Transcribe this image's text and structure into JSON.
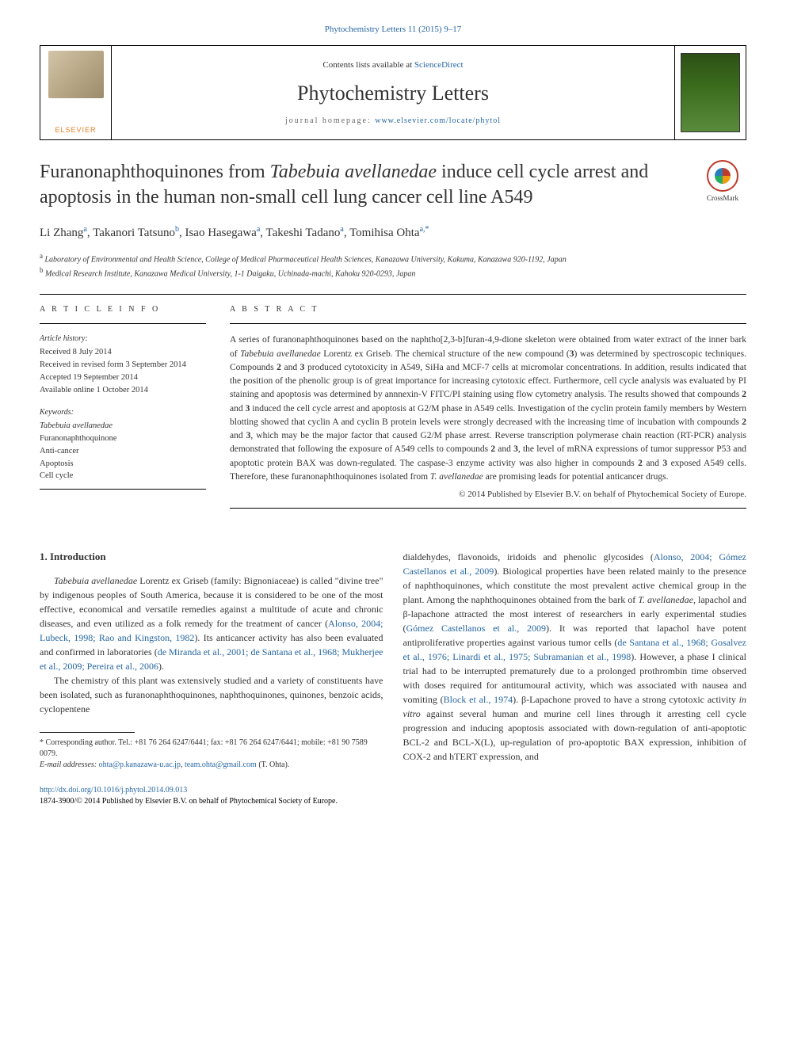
{
  "journal_ref": "Phytochemistry Letters 11 (2015) 9–17",
  "header": {
    "contents_prefix": "Contents lists available at ",
    "contents_link": "ScienceDirect",
    "journal_name": "Phytochemistry Letters",
    "homepage_prefix": "journal homepage: ",
    "homepage_link": "www.elsevier.com/locate/phytol",
    "publisher": "ELSEVIER"
  },
  "crossmark": "CrossMark",
  "title": {
    "pre": "Furanonaphthoquinones from ",
    "species": "Tabebuia avellanedae",
    "post": " induce cell cycle arrest and apoptosis in the human non-small cell lung cancer cell line A549"
  },
  "authors": {
    "a1": "Li Zhang",
    "a1_aff": "a",
    "a2": "Takanori Tatsuno",
    "a2_aff": "b",
    "a3": "Isao Hasegawa",
    "a3_aff": "a",
    "a4": "Takeshi Tadano",
    "a4_aff": "a",
    "a5": "Tomihisa Ohta",
    "a5_aff": "a,",
    "corr": "*"
  },
  "aff": {
    "a": "Laboratory of Environmental and Health Science, College of Medical Pharmaceutical Health Sciences, Kanazawa University, Kakuma, Kanazawa 920-1192, Japan",
    "b": "Medical Research Institute, Kanazawa Medical University, 1-1 Daigaku, Uchinada-machi, Kahoku 920-0293, Japan"
  },
  "info_head": "A R T I C L E   I N F O",
  "abstract_head": "A B S T R A C T",
  "history_label": "Article history:",
  "history": {
    "received": "Received 8 July 2014",
    "revised": "Received in revised form 3 September 2014",
    "accepted": "Accepted 19 September 2014",
    "online": "Available online 1 October 2014"
  },
  "keywords_label": "Keywords:",
  "keywords": {
    "k1": "Tabebuia avellanedae",
    "k2": "Furanonaphthoquinone",
    "k3": "Anti-cancer",
    "k4": "Apoptosis",
    "k5": "Cell cycle"
  },
  "abstract": {
    "p1a": "A series of furanonaphthoquinones based on the naphtho[2,3-b]furan-4,9-dione skeleton were obtained from water extract of the inner bark of ",
    "p1sp": "Tabebuia avellanedae",
    "p1b": " Lorentz ex Griseb. The chemical structure of the new compound (",
    "p1c3": "3",
    "p1c": ") was determined by spectroscopic techniques. Compounds ",
    "p1c2": "2",
    "p1d": " and ",
    "p1c3b": "3",
    "p1e": " produced cytotoxicity in A549, SiHa and MCF-7 cells at micromolar concentrations. In addition, results indicated that the position of the phenolic group is of great importance for increasing cytotoxic effect. Furthermore, cell cycle analysis was evaluated by PI staining and apoptosis was determined by annnexin-V FITC/PI staining using flow cytometry analysis. The results showed that compounds ",
    "p1c2b": "2",
    "p1f": " and ",
    "p1c3c": "3",
    "p1g": " induced the cell cycle arrest and apoptosis at G2/M phase in A549 cells. Investigation of the cyclin protein family members by Western blotting showed that cyclin A and cyclin B protein levels were strongly decreased with the increasing time of incubation with compounds ",
    "p1c2c": "2",
    "p1h": " and ",
    "p1c3d": "3",
    "p1i": ", which may be the major factor that caused G2/M phase arrest. Reverse transcription polymerase chain reaction (RT-PCR) analysis demonstrated that following the exposure of A549 cells to compounds ",
    "p1c2d": "2",
    "p1j": " and ",
    "p1c3e": "3",
    "p1k": ", the level of mRNA expressions of tumor suppressor P53 and apoptotic protein BAX was down-regulated. The caspase-3 enzyme activity was also higher in compounds ",
    "p1c2e": "2",
    "p1l": " and ",
    "p1c3f": "3",
    "p1m": " exposed A549 cells. Therefore, these furanonaphthoquinones isolated from ",
    "p1sp2": "T. avellanedae",
    "p1n": " are promising leads for potential anticancer drugs."
  },
  "copyright": "© 2014 Published by Elsevier B.V. on behalf of Phytochemical Society of Europe.",
  "body": {
    "heading": "1. Introduction",
    "p1a": "Tabebuia avellanedae",
    "p1b": " Lorentz ex Griseb (family: Bignoniaceae) is called \"divine tree\" by indigenous peoples of South America, because it is considered to be one of the most effective, economical and versatile remedies against a multitude of acute and chronic diseases, and even utilized as a folk remedy for the treatment of cancer (",
    "p1ref1": "Alonso, 2004; Lubeck, 1998; Rao and Kingston, 1982",
    "p1c": "). Its anticancer activity has also been evaluated and confirmed in laboratories (",
    "p1ref2": "de Miranda et al., 2001; de Santana et al., 1968; Mukherjee et al., 2009; Pereira et al., 2006",
    "p1d": ").",
    "p2a": "The chemistry of this plant was extensively studied and a variety of constituents have been isolated, such as furanonaphthoquinones, naphthoquinones, quinones, benzoic acids, cyclopentene",
    "p3a": "dialdehydes, flavonoids, iridoids and phenolic glycosides (",
    "p3ref1": "Alonso, 2004; Gómez Castellanos et al., 2009",
    "p3b": "). Biological properties have been related mainly to the presence of naphthoquinones, which constitute the most prevalent active chemical group in the plant. Among the naphthoquinones obtained from the bark of ",
    "p3sp": "T. avellanedae",
    "p3c": ", lapachol and β-lapachone attracted the most interest of researchers in early experimental studies (",
    "p3ref2": "Gómez Castellanos et al., 2009",
    "p3d": "). It was reported that lapachol have potent antiproliferative properties against various tumor cells (",
    "p3ref3": "de Santana et al., 1968; Gosalvez et al., 1976; Linardi et al., 1975; Subramanian et al., 1998",
    "p3e": "). However, a phase I clinical trial had to be interrupted prematurely due to a prolonged prothrombin time observed with doses required for antitumoural activity, which was associated with nausea and vomiting (",
    "p3ref4": "Block et al., 1974",
    "p3f": "). β-Lapachone proved to have a strong cytotoxic activity ",
    "p3it": "in vitro",
    "p3g": " against several human and murine cell lines through it arresting cell cycle progression and inducing apoptosis associated with down-regulation of anti-apoptotic BCL-2 and BCL-X(L), up-regulation of pro-apoptotic BAX expression, inhibition of COX-2 and hTERT expression, and"
  },
  "footnote": {
    "corr_label": "* Corresponding author. Tel.: +81 76 264 6247/6441; fax: +81 76 264 6247/6441; mobile: +81 90 7589 0079.",
    "email_label": "E-mail addresses:",
    "email1": "ohta@p.kanazawa-u.ac.jp",
    "email_sep": ", ",
    "email2": "team.ohta@gmail.com",
    "email_who": " (T. Ohta)."
  },
  "footer": {
    "doi": "http://dx.doi.org/10.1016/j.phytol.2014.09.013",
    "issn": "1874-3900/© 2014 Published by Elsevier B.V. on behalf of Phytochemical Society of Europe."
  },
  "colors": {
    "link": "#2666a2",
    "text": "#333333",
    "elsevier": "#e67e22"
  }
}
